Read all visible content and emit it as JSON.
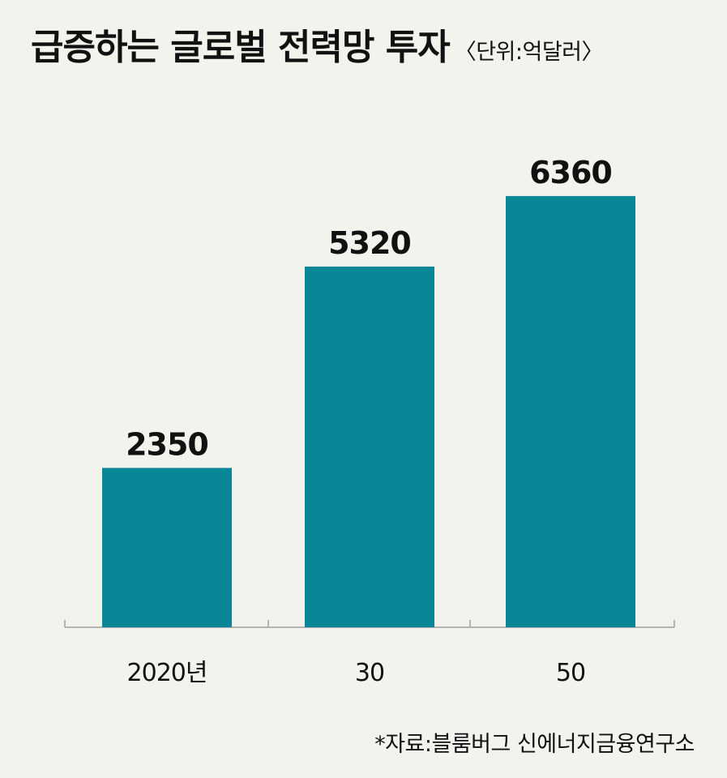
{
  "title": "급증하는 글로벌 전력망 투자",
  "unit_label": "〈단위:억달러〉",
  "source": "*자료:블룸버그 신에너지금융연구소",
  "colors": {
    "bar": "#098796",
    "axis": "#b3b3b3",
    "background": "#f3f3ee"
  },
  "chart_data": {
    "type": "bar",
    "categories": [
      "2020년",
      "30",
      "50"
    ],
    "values": [
      2350,
      5320,
      6360
    ],
    "ylim": [
      0,
      7100
    ],
    "grid": false,
    "xlabel": "",
    "ylabel": ""
  }
}
